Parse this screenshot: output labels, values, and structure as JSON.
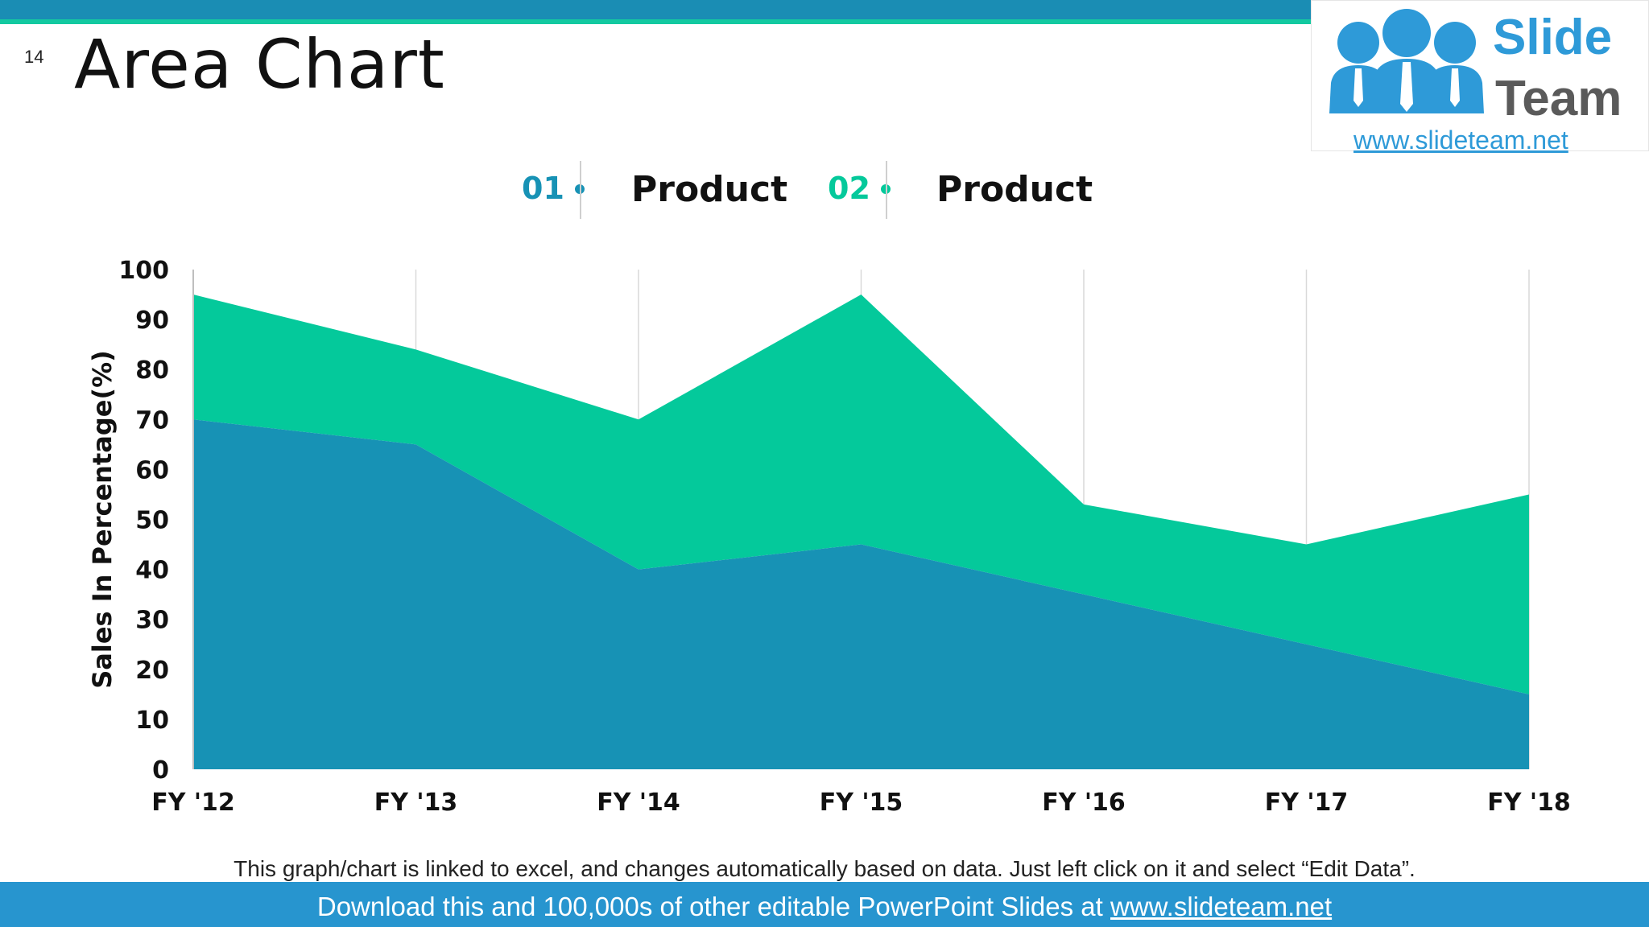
{
  "slide_number": "14",
  "title": "Area Chart",
  "logo": {
    "word1": "Slide",
    "word2": "Team",
    "url": "www.slideteam.net"
  },
  "legend": [
    {
      "number": "01",
      "label": "Product",
      "color": "#1792b5"
    },
    {
      "number": "02",
      "label": "Product",
      "color": "#04c99b"
    }
  ],
  "chart_data": {
    "type": "area",
    "stacked": true,
    "categories": [
      "FY '12",
      "FY '13",
      "FY '14",
      "FY '15",
      "FY '16",
      "FY '17",
      "FY '18"
    ],
    "series": [
      {
        "values": [
          70,
          65,
          40,
          45,
          35,
          25,
          15
        ],
        "color": "#1792b5"
      },
      {
        "values": [
          25,
          19,
          30,
          50,
          18,
          20,
          40
        ],
        "color": "#04c99b"
      }
    ],
    "ylabel": "Sales In Percentage(%)",
    "ylim": [
      0,
      100
    ],
    "yticks": [
      0,
      10,
      20,
      30,
      40,
      50,
      60,
      70,
      80,
      90,
      100
    ],
    "vertical_gridlines": true,
    "horizontal_gridlines": false
  },
  "note": "This graph/chart is linked to excel, and changes automatically based on data. Just left click on it and select “Edit Data”.",
  "footer": {
    "prefix": "Download this and 100,000s of other editable PowerPoint Slides at ",
    "link": "www.slideteam.net"
  }
}
